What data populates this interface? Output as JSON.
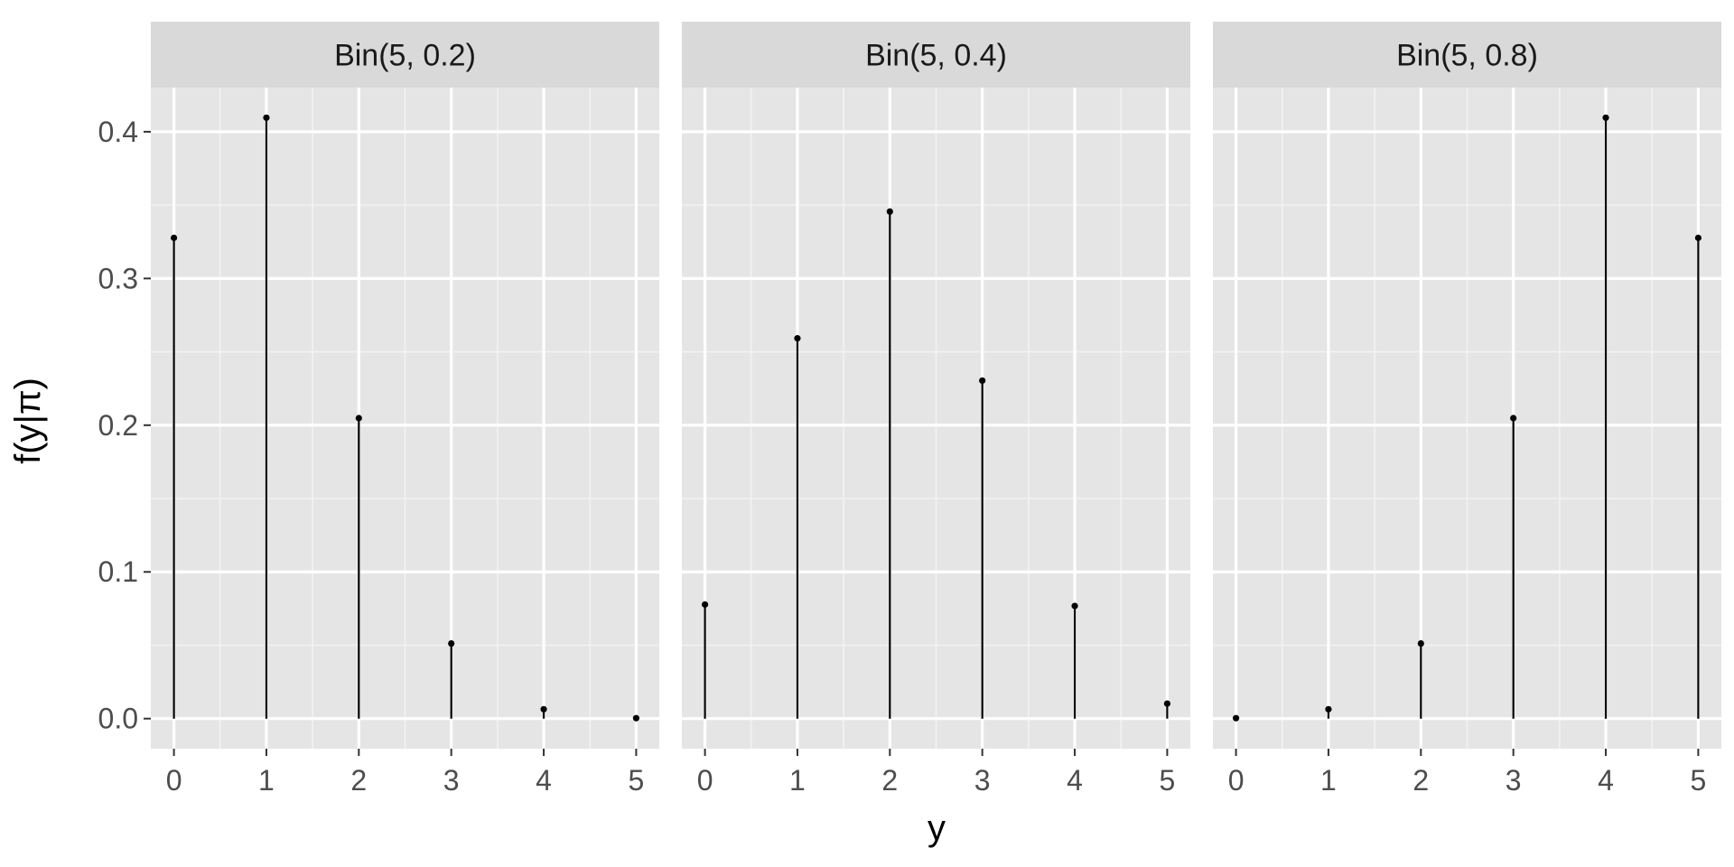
{
  "chart_data": {
    "type": "lollipop",
    "facet_layout": "1 row x 3 columns",
    "xlabel": "y",
    "ylabel": "f(y|π)",
    "x_ticks": [
      0,
      1,
      2,
      3,
      4,
      5
    ],
    "y_ticks": [
      0.0,
      0.1,
      0.2,
      0.3,
      0.4
    ],
    "y_tick_labels": [
      "0.0",
      "0.1",
      "0.2",
      "0.3",
      "0.4"
    ],
    "xlim": [
      -0.25,
      5.25
    ],
    "ylim": [
      -0.0205,
      0.4301
    ],
    "grid": true,
    "panel_background": "#e5e5e5",
    "strip_background": "#d9d9d9",
    "mark_color": "#000000",
    "facets": [
      {
        "label": "Bin(5, 0.2)",
        "x": [
          0,
          1,
          2,
          3,
          4,
          5
        ],
        "y": [
          0.32768,
          0.4096,
          0.2048,
          0.0512,
          0.0064,
          0.00032
        ]
      },
      {
        "label": "Bin(5, 0.4)",
        "x": [
          0,
          1,
          2,
          3,
          4,
          5
        ],
        "y": [
          0.07776,
          0.2592,
          0.3456,
          0.2304,
          0.0768,
          0.01024
        ]
      },
      {
        "label": "Bin(5, 0.8)",
        "x": [
          0,
          1,
          2,
          3,
          4,
          5
        ],
        "y": [
          0.00032,
          0.0064,
          0.0512,
          0.2048,
          0.4096,
          0.32768
        ]
      }
    ]
  }
}
